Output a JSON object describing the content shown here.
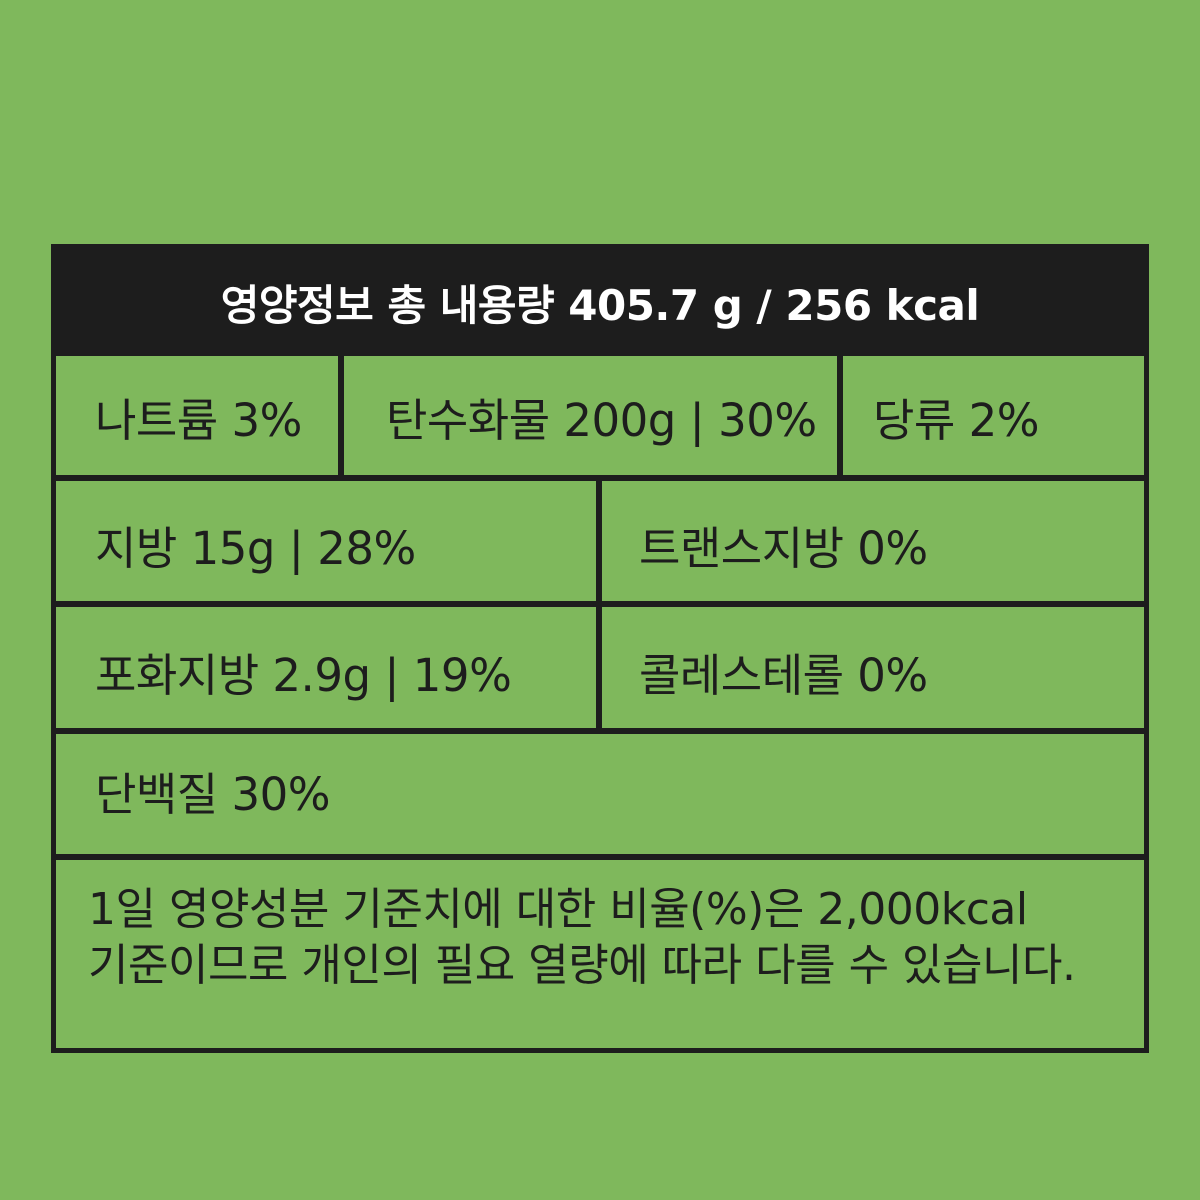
{
  "header": {
    "title": "영양정보 총 내용량 405.7 g / 256 kcal"
  },
  "rows": [
    {
      "cells": [
        {
          "label": "나트륨 3%"
        },
        {
          "label": "탄수화물 200g | 30%"
        },
        {
          "label": "당류 2%"
        }
      ]
    },
    {
      "cells": [
        {
          "label": "지방 15g | 28%"
        },
        {
          "label": "트랜스지방 0%"
        }
      ]
    },
    {
      "cells": [
        {
          "label": "포화지방 2.9g | 19%"
        },
        {
          "label": "콜레스테롤 0%"
        }
      ]
    },
    {
      "cells": [
        {
          "label": "단백질 30%"
        }
      ]
    }
  ],
  "note": {
    "line1": "1일 영양성분 기준치에 대한 비율(%)은 2,000kcal",
    "line2": "기준이므로 개인의 필요 열량에 따라 다를 수 있습니다."
  },
  "colors": {
    "background": "#7fb85c",
    "border": "#1d1d1d",
    "header_text": "#ffffff",
    "text": "#1d1d1d"
  }
}
